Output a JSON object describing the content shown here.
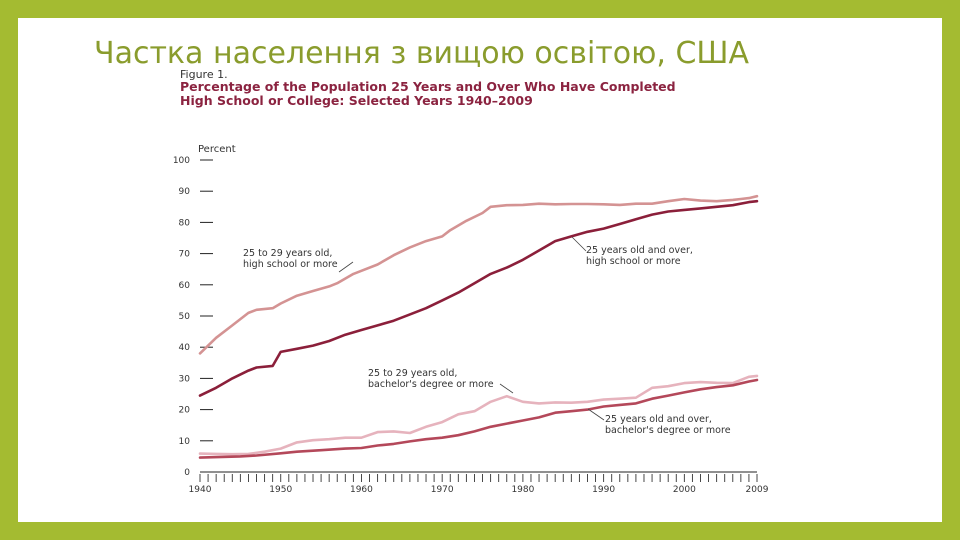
{
  "slide": {
    "title": "Частка населення з вищою освітою, США",
    "colors": {
      "frame": "#a4bb31",
      "title": "#8a9c2d"
    }
  },
  "figure": {
    "label": "Figure 1.",
    "title_line1": "Percentage of the Population 25 Years and Over Who Have Completed",
    "title_line2": "High School or College: Selected Years 1940–2009"
  },
  "chart_data": {
    "type": "line",
    "ylabel": "Percent",
    "xlim": [
      1940,
      2009
    ],
    "ylim": [
      0,
      100
    ],
    "yticks": [
      0,
      10,
      20,
      30,
      40,
      50,
      60,
      70,
      80,
      90,
      100
    ],
    "xticks": [
      1940,
      1950,
      1960,
      1970,
      1980,
      1990,
      2000,
      2009
    ],
    "ytick_labels": [
      "0",
      "10",
      "20",
      "30",
      "40",
      "50",
      "60",
      "70",
      "80",
      "90",
      "100"
    ],
    "xtick_labels": [
      "1940",
      "1950",
      "1960",
      "1970",
      "1980",
      "1990",
      "2000",
      "2009"
    ],
    "grid": false,
    "series": [
      {
        "name": "25 to 29 years old, high school or more",
        "label_lines": [
          "25 to 29 years old,",
          "high school or more"
        ],
        "color": "#d49393",
        "x": [
          1940,
          1942,
          1944,
          1946,
          1947,
          1949,
          1950,
          1952,
          1954,
          1956,
          1957,
          1959,
          1960,
          1962,
          1964,
          1966,
          1968,
          1970,
          1971,
          1973,
          1975,
          1976,
          1978,
          1980,
          1982,
          1984,
          1986,
          1988,
          1990,
          1992,
          1994,
          1996,
          1998,
          2000,
          2002,
          2004,
          2006,
          2007,
          2008,
          2009
        ],
        "values": [
          38,
          43,
          47,
          51,
          52,
          52.5,
          54,
          56.5,
          58,
          59.5,
          60.5,
          63.5,
          64.5,
          66.5,
          69.5,
          72,
          74,
          75.5,
          77.5,
          80.5,
          83,
          85,
          85.5,
          85.6,
          86,
          85.8,
          85.9,
          85.9,
          85.8,
          85.6,
          86,
          86,
          86.8,
          87.5,
          87,
          86.8,
          87.2,
          87.5,
          87.8,
          88.4
        ]
      },
      {
        "name": "25 years old and over, high school or more",
        "label_lines": [
          "25 years old and over,",
          "high school or more"
        ],
        "color": "#8b1f3a",
        "x": [
          1940,
          1942,
          1944,
          1946,
          1947,
          1949,
          1950,
          1952,
          1954,
          1956,
          1958,
          1960,
          1962,
          1964,
          1966,
          1968,
          1970,
          1972,
          1974,
          1976,
          1978,
          1980,
          1982,
          1984,
          1986,
          1988,
          1990,
          1992,
          1994,
          1996,
          1998,
          2000,
          2002,
          2004,
          2006,
          2008,
          2009
        ],
        "values": [
          24.5,
          27,
          30,
          32.5,
          33.5,
          34,
          38.5,
          39.5,
          40.5,
          42,
          44,
          45.5,
          47,
          48.5,
          50.5,
          52.5,
          55,
          57.5,
          60.5,
          63.5,
          65.5,
          68,
          71,
          74,
          75.5,
          77,
          78,
          79.5,
          81,
          82.5,
          83.5,
          84,
          84.5,
          85,
          85.5,
          86.5,
          86.8
        ]
      },
      {
        "name": "25 to 29 years old, bachelor's degree or more",
        "label_lines": [
          "25 to 29 years old,",
          "bachelor's degree or more"
        ],
        "color": "#e6b3bd",
        "x": [
          1940,
          1942,
          1944,
          1946,
          1948,
          1950,
          1952,
          1954,
          1956,
          1958,
          1960,
          1962,
          1964,
          1966,
          1968,
          1970,
          1972,
          1974,
          1976,
          1978,
          1980,
          1982,
          1984,
          1986,
          1988,
          1990,
          1992,
          1994,
          1996,
          1998,
          2000,
          2002,
          2004,
          2006,
          2008,
          2009
        ],
        "values": [
          5.9,
          5.8,
          5.7,
          5.8,
          6.5,
          7.5,
          9.5,
          10.2,
          10.5,
          11,
          11,
          12.8,
          13,
          12.5,
          14.5,
          16,
          18.5,
          19.5,
          22.5,
          24.3,
          22.5,
          22,
          22.3,
          22.2,
          22.5,
          23.2,
          23.5,
          23.8,
          27,
          27.5,
          28.5,
          28.8,
          28.6,
          28.5,
          30.5,
          30.8
        ]
      },
      {
        "name": "25 years old and over, bachelor's degree or more",
        "label_lines": [
          "25 years old and over,",
          "bachelor's degree or more"
        ],
        "color": "#b4485a",
        "x": [
          1940,
          1945,
          1947,
          1950,
          1952,
          1955,
          1958,
          1960,
          1962,
          1964,
          1966,
          1968,
          1970,
          1972,
          1974,
          1976,
          1978,
          1980,
          1982,
          1984,
          1986,
          1988,
          1990,
          1992,
          1994,
          1996,
          1998,
          2000,
          2002,
          2004,
          2006,
          2008,
          2009
        ],
        "values": [
          4.6,
          5,
          5.3,
          6,
          6.5,
          7,
          7.5,
          7.7,
          8.5,
          9,
          9.8,
          10.5,
          11,
          11.8,
          13,
          14.5,
          15.5,
          16.5,
          17.5,
          19,
          19.5,
          20,
          21,
          21.5,
          22,
          23.5,
          24.5,
          25.5,
          26.5,
          27.2,
          27.8,
          29,
          29.5
        ]
      }
    ]
  }
}
